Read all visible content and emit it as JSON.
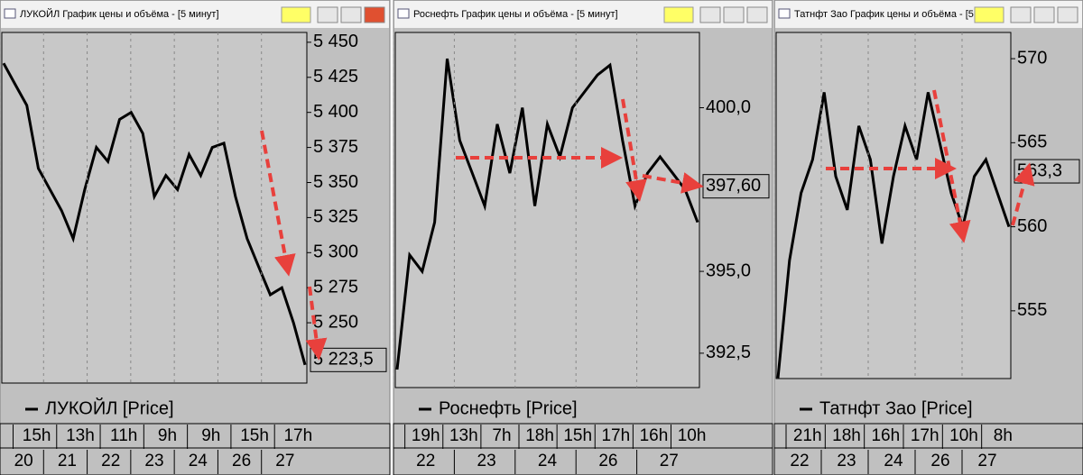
{
  "windows": [
    {
      "title": "ЛУКОЙЛ График цены и объёма - [5 минут]",
      "chart": {
        "type": "line",
        "color": "#000000",
        "values": [
          5435,
          5420,
          5405,
          5360,
          5345,
          5330,
          5310,
          5345,
          5375,
          5365,
          5395,
          5400,
          5385,
          5340,
          5355,
          5345,
          5370,
          5355,
          5375,
          5378,
          5340,
          5310,
          5290,
          5270,
          5275,
          5250,
          5220
        ],
        "ylim": [
          5207,
          5457
        ],
        "yticks": [
          {
            "value": 5450,
            "label": "5 450"
          },
          {
            "value": 5425,
            "label": "5 425"
          },
          {
            "value": 5400,
            "label": "5 400"
          },
          {
            "value": 5375,
            "label": "5 375"
          },
          {
            "value": 5350,
            "label": "5 350"
          },
          {
            "value": 5325,
            "label": "5 325"
          },
          {
            "value": 5300,
            "label": "5 300"
          },
          {
            "value": 5275,
            "label": "5 275"
          },
          {
            "value": 5250,
            "label": "5 250"
          }
        ],
        "last_price": {
          "value": 5223.5,
          "label": "5 223,5"
        },
        "legend": "ЛУКОЙЛ [Price]",
        "time_row1": [
          "15h",
          "13h",
          "11h",
          "9h",
          "9h",
          "15h",
          "17h"
        ],
        "time_row2": [
          "20",
          "21",
          "22",
          "23",
          "24",
          "26",
          "27"
        ]
      }
    },
    {
      "title": "Роснефть График цены и объёма - [5 минут]",
      "chart": {
        "type": "line",
        "color": "#000000",
        "values": [
          392,
          395.5,
          395,
          396.5,
          401.5,
          399,
          398,
          397,
          399.5,
          398,
          400,
          397,
          399.5,
          398.5,
          400,
          400.5,
          401,
          401.3,
          399,
          397,
          398,
          398.5,
          398,
          397.5,
          396.5
        ],
        "ylim": [
          391.45,
          402.3
        ],
        "yticks": [
          {
            "value": 400,
            "label": "400,0"
          },
          {
            "value": 395,
            "label": "395,0"
          },
          {
            "value": 392.5,
            "label": "392,5"
          }
        ],
        "last_price": {
          "value": 397.6,
          "label": "397,60"
        },
        "legend": "Роснефть [Price]",
        "time_row1": [
          "19h",
          "13h",
          "7h",
          "18h",
          "15h",
          "17h",
          "16h",
          "10h"
        ],
        "time_row2": [
          "22",
          "23",
          "24",
          "26",
          "27"
        ]
      }
    },
    {
      "title": "Татнфт Зао График цены и объёма - [5",
      "chart": {
        "type": "line",
        "color": "#000000",
        "values": [
          551,
          558,
          562,
          564,
          568,
          563,
          561,
          566,
          564,
          559,
          563,
          566,
          564,
          568,
          565,
          562,
          560,
          563,
          564,
          562,
          560
        ],
        "ylim": [
          550.97,
          571.56
        ],
        "yticks": [
          570,
          565,
          560,
          555
        ],
        "last_price": {
          "value": 563.3,
          "label": "563,3"
        },
        "legend": "Татнфт Зао [Price]",
        "time_row1": [
          "21h",
          "18h",
          "16h",
          "17h",
          "10h",
          "8h"
        ],
        "time_row2": [
          "22",
          "23",
          "24",
          "26",
          "27"
        ]
      }
    }
  ]
}
